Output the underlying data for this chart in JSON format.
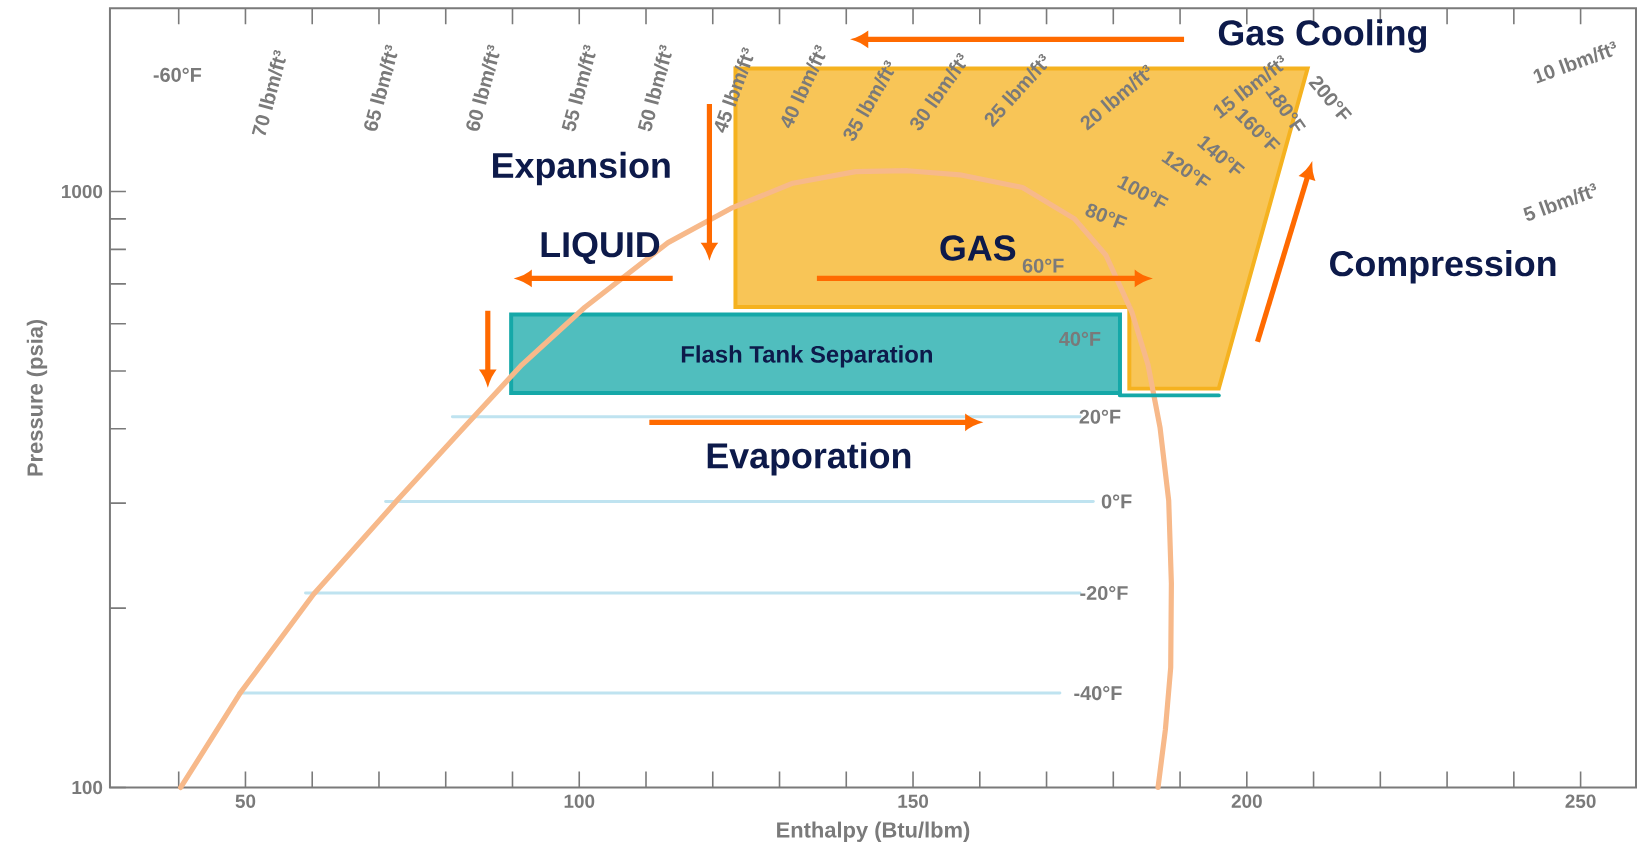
{
  "chart_data": {
    "type": "line",
    "xlabel": "Enthalpy (Btu/lbm)",
    "ylabel": "Pressure (psia)",
    "xlim": [
      29.7,
      258.3
    ],
    "ylim": [
      100,
      2030
    ],
    "log": "y",
    "xticks": [
      {
        "value": 40,
        "label": null
      },
      50,
      {
        "value": 60,
        "label": null
      },
      {
        "value": 70,
        "label": null
      },
      {
        "value": 80,
        "label": null
      },
      {
        "value": 90,
        "label": null
      },
      100,
      {
        "value": 110,
        "label": null
      },
      {
        "value": 120,
        "label": null
      },
      {
        "value": 130,
        "label": null
      },
      {
        "value": 140,
        "label": null
      },
      150,
      {
        "value": 160,
        "label": null
      },
      {
        "value": 170,
        "label": null
      },
      {
        "value": 180,
        "label": null
      },
      {
        "value": 190,
        "label": null
      },
      200,
      {
        "value": 210,
        "label": null
      },
      {
        "value": 220,
        "label": null
      },
      {
        "value": 230,
        "label": null
      },
      {
        "value": 240,
        "label": null
      },
      250
    ],
    "yticks": [
      100,
      {
        "value": 200,
        "label": null
      },
      {
        "value": 300,
        "label": null
      },
      {
        "value": 400,
        "label": null
      },
      {
        "value": 500,
        "label": null
      },
      {
        "value": 600,
        "label": null
      },
      {
        "value": 700,
        "label": null
      },
      {
        "value": 800,
        "label": null
      },
      {
        "value": 900,
        "label": null
      },
      1000
    ],
    "grid": false,
    "marker": "none",
    "series": [
      {
        "color": "#bfe3f0",
        "x": [
          49,
          172
        ],
        "values": [
          144,
          144
        ]
      },
      {
        "color": "#bfe3f0",
        "x": [
          59,
          175
        ],
        "values": [
          212,
          212
        ]
      },
      {
        "color": "#bfe3f0",
        "x": [
          71,
          177
        ],
        "values": [
          302,
          302
        ]
      },
      {
        "color": "#bfe3f0",
        "x": [
          81,
          175
        ],
        "values": [
          419,
          419
        ]
      },
      {
        "type": "area",
        "color": "#15a8a8",
        "x": [
          89.8,
          181,
          181,
          89.8,
          89.8
        ],
        "values": [
          622,
          622,
          459,
          459,
          622
        ]
      },
      {
        "type": "area",
        "color": "#f5b21f",
        "x": [
          123.4,
          209.1,
          195.8,
          182.4,
          182.4,
          123.4,
          123.4
        ],
        "values": [
          1609,
          1609,
          467,
          467,
          640,
          640,
          1609
        ]
      },
      {
        "color": "#f7b98a",
        "x": [
          40.3,
          49.2,
          60.2,
          72.7,
          82,
          91.4,
          100.8,
          113.3,
          122.7,
          132,
          141.4,
          149.2,
          157,
          166.4,
          174.2,
          178.9,
          182.8,
          185.2,
          187,
          188.3,
          188.7,
          188.6,
          187.8,
          186.7
        ],
        "values": [
          100,
          144,
          211,
          303,
          394,
          512,
          639,
          821,
          937,
          1033,
          1080,
          1084,
          1067,
          1016,
          900,
          782,
          627,
          512,
          402,
          303,
          220,
          159,
          125,
          100
        ]
      },
      {
        "color": "#15a8a8",
        "x": [
          181,
          195.8
        ],
        "values": [
          455,
          455
        ]
      }
    ],
    "annotations": [
      "Gas Cooling",
      "Expansion",
      "LIQUID",
      "GAS",
      "Compression",
      "Evaporation",
      "Flash Tank Separation",
      "-60°F",
      "70 lbm/ft³",
      "65 lbm/ft³",
      "60 lbm/ft³",
      "55 lbm/ft³",
      "50 lbm/ft³",
      "45 lbm/ft³",
      "40 lbm/ft³",
      "35 lbm/ft³",
      "30 lbm/ft³",
      "25 lbm/ft³",
      "20 lbm/ft³",
      "15 lbm/ft³",
      "10 lbm/ft³",
      "5 lbm/ft³",
      "200°F",
      "180°F",
      "160°F",
      "140°F",
      "120°F",
      "100°F",
      "80°F",
      "60°F",
      "40°F",
      "20°F",
      "0°F",
      "-20°F",
      "-40°F"
    ]
  }
}
